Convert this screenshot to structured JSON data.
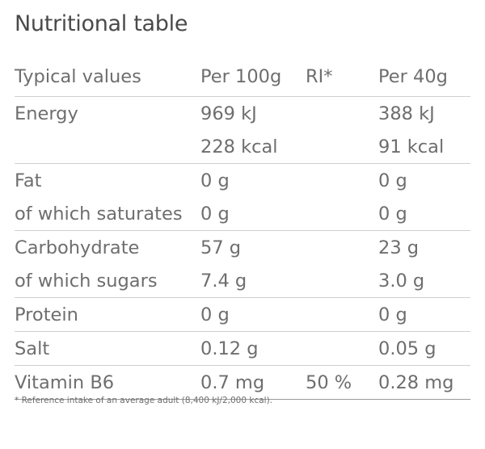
{
  "title": "Nutritional table",
  "header": {
    "label": "Typical values",
    "per100": "Per 100g",
    "ri": "RI*",
    "perserving": "Per 40g"
  },
  "groups": [
    {
      "rows": [
        {
          "label": "Energy",
          "per100": "969 kJ",
          "ri": "",
          "perserving": "388 kJ"
        },
        {
          "label": "",
          "per100": "228 kcal",
          "ri": "",
          "perserving": "91 kcal"
        }
      ]
    },
    {
      "rows": [
        {
          "label": "Fat",
          "per100": "0 g",
          "ri": "",
          "perserving": "0 g"
        },
        {
          "label": "of which saturates",
          "per100": "0 g",
          "ri": "",
          "perserving": "0 g"
        }
      ]
    },
    {
      "rows": [
        {
          "label": "Carbohydrate",
          "per100": "57 g",
          "ri": "",
          "perserving": "23 g"
        },
        {
          "label": "of which sugars",
          "per100": "7.4 g",
          "ri": "",
          "perserving": "3.0 g"
        }
      ]
    },
    {
      "rows": [
        {
          "label": "Protein",
          "per100": "0 g",
          "ri": "",
          "perserving": "0 g"
        }
      ]
    },
    {
      "rows": [
        {
          "label": "Salt",
          "per100": "0.12 g",
          "ri": "",
          "perserving": "0.05 g"
        }
      ]
    },
    {
      "rows": [
        {
          "label": "Vitamin B6",
          "per100": "0.7 mg",
          "ri": "50 %",
          "perserving": "0.28 mg"
        }
      ]
    }
  ],
  "footnote": "* Reference intake of an average adult (8,400 kJ/2,000 kcal)."
}
